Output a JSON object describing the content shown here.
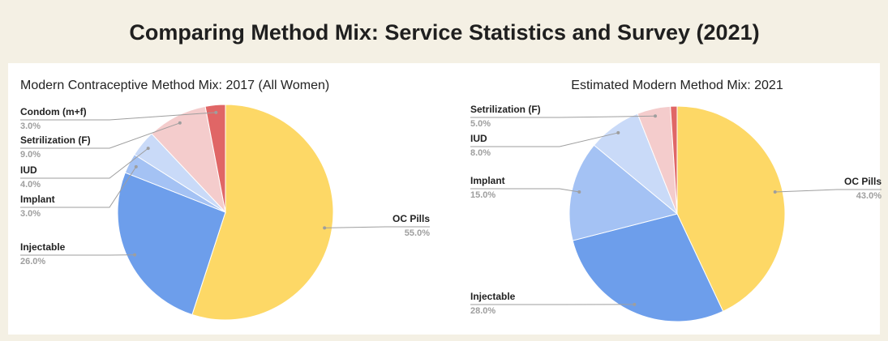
{
  "title": "Comparing Method Mix: Service Statistics and Survey (2021)",
  "chart_data": [
    {
      "type": "pie",
      "title": "Modern Contraceptive Method Mix: 2017 (All Women)",
      "categories": [
        "OC Pills",
        "Injectable",
        "Implant",
        "IUD",
        "Setrilization (F)",
        "Condom (m+f)"
      ],
      "values": [
        55,
        26,
        3,
        4,
        9,
        3
      ],
      "value_labels": [
        "55.0%",
        "26.0%",
        "3.0%",
        "4.0%",
        "9.0%",
        "3.0%"
      ],
      "colors": [
        "#fdd866",
        "#6d9eeb",
        "#a4c2f4",
        "#c9daf8",
        "#f4cccc",
        "#e06666"
      ]
    },
    {
      "type": "pie",
      "title": "Estimated Modern Method Mix: 2021",
      "categories": [
        "OC Pills",
        "Injectable",
        "Implant",
        "IUD",
        "Setrilization (F)",
        null
      ],
      "values": [
        43,
        28,
        15,
        8,
        5,
        1
      ],
      "value_labels": [
        "43.0%",
        "28.0%",
        "15.0%",
        "8.0%",
        "5.0%",
        null
      ],
      "colors": [
        "#fdd866",
        "#6d9eeb",
        "#a4c2f4",
        "#c9daf8",
        "#f4cccc",
        "#e06666"
      ]
    }
  ]
}
